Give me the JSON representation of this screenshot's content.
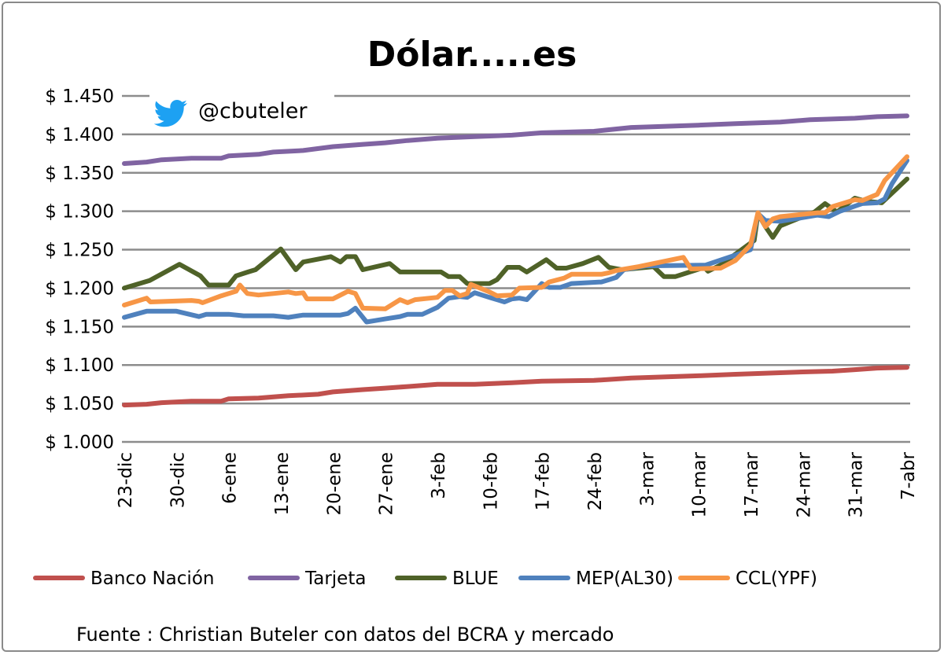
{
  "chart_data": {
    "type": "line",
    "title": "Dólar.....es",
    "handle": "@cbuteler",
    "source": "Fuente : Christian Buteler con datos del BCRA y mercado",
    "xlabel": "",
    "ylabel": "",
    "x_unit": "days since 23-dic",
    "x_ticks": [
      0,
      7,
      14,
      21,
      28,
      35,
      42,
      49,
      56,
      63,
      70,
      77,
      84,
      91,
      98,
      105
    ],
    "x_tick_labels": [
      "23-dic",
      "30-dic",
      "6-ene",
      "13-ene",
      "20-ene",
      "27-ene",
      "3-feb",
      "10-feb",
      "17-feb",
      "24-feb",
      "3-mar",
      "10-mar",
      "17-mar",
      "24-mar",
      "31-mar",
      "7-abr"
    ],
    "y_ticks": [
      1.0,
      1.05,
      1.1,
      1.15,
      1.2,
      1.25,
      1.3,
      1.35,
      1.4,
      1.45
    ],
    "y_tick_labels": [
      "$ 1.000",
      "$ 1.050",
      "$ 1.100",
      "$ 1.150",
      "$ 1.200",
      "$ 1.250",
      "$ 1.300",
      "$ 1.350",
      "$ 1.400",
      "$ 1.450"
    ],
    "ylim": [
      1.0,
      1.45
    ],
    "xlim": [
      0,
      105
    ],
    "grid": "horizontal",
    "legend": "bottom",
    "series": [
      {
        "name": "Banco Nación",
        "color": "#c0504d",
        "x": [
          0,
          3,
          5,
          9,
          13,
          14,
          18,
          22,
          26,
          28,
          32,
          35,
          38,
          42,
          47,
          52,
          56,
          63,
          68,
          77,
          82,
          91,
          95,
          98,
          101,
          105
        ],
        "y": [
          1.048,
          1.049,
          1.051,
          1.053,
          1.053,
          1.056,
          1.057,
          1.06,
          1.062,
          1.065,
          1.068,
          1.07,
          1.072,
          1.075,
          1.075,
          1.077,
          1.079,
          1.08,
          1.083,
          1.086,
          1.088,
          1.091,
          1.092,
          1.094,
          1.096,
          1.097
        ]
      },
      {
        "name": "Tarjeta",
        "color": "#8064a2",
        "x": [
          0,
          3,
          5,
          9,
          13,
          14,
          18,
          20,
          24,
          28,
          32,
          35,
          38,
          42,
          47,
          52,
          56,
          63,
          65,
          68,
          77,
          82,
          88,
          92,
          98,
          101,
          105
        ],
        "y": [
          1.362,
          1.364,
          1.367,
          1.369,
          1.369,
          1.372,
          1.374,
          1.377,
          1.379,
          1.384,
          1.387,
          1.389,
          1.392,
          1.395,
          1.397,
          1.399,
          1.402,
          1.404,
          1.406,
          1.409,
          1.412,
          1.414,
          1.416,
          1.419,
          1.421,
          1.423,
          1.424
        ]
      },
      {
        "name": "BLUE",
        "color": "#4f6228",
        "x": [
          0,
          3.4,
          7.4,
          10.2,
          11.3,
          14,
          15,
          16.6,
          17.6,
          21,
          23,
          24,
          27.7,
          29,
          29.8,
          31,
          32,
          35.6,
          37,
          42.5,
          43.5,
          45,
          46,
          49,
          50,
          51.4,
          53,
          54,
          56.6,
          58,
          59.3,
          61.5,
          63.6,
          65,
          66.7,
          71,
          72.4,
          73.9,
          77.8,
          78.3,
          80,
          84.5,
          85,
          86,
          87,
          88,
          92.6,
          94,
          95.6,
          98,
          99.5,
          101.6,
          105
        ],
        "y": [
          1.2,
          1.21,
          1.231,
          1.216,
          1.204,
          1.204,
          1.216,
          1.221,
          1.224,
          1.251,
          1.224,
          1.234,
          1.241,
          1.234,
          1.241,
          1.241,
          1.224,
          1.232,
          1.221,
          1.221,
          1.215,
          1.215,
          1.206,
          1.206,
          1.211,
          1.227,
          1.227,
          1.221,
          1.237,
          1.226,
          1.226,
          1.232,
          1.24,
          1.227,
          1.224,
          1.228,
          1.215,
          1.215,
          1.227,
          1.222,
          1.23,
          1.262,
          1.297,
          1.28,
          1.266,
          1.281,
          1.299,
          1.31,
          1.299,
          1.317,
          1.313,
          1.311,
          1.342
        ]
      },
      {
        "name": "MEP(AL30)",
        "color": "#4f81bd",
        "x": [
          0,
          3,
          7,
          10,
          11,
          14,
          16,
          20,
          22,
          24,
          29,
          30,
          31,
          32.5,
          35,
          37,
          38,
          40,
          42,
          43.5,
          45,
          46,
          47,
          49,
          51,
          52,
          53,
          54,
          56,
          57,
          58.5,
          60,
          64,
          65,
          66,
          67,
          70,
          78,
          82,
          84,
          85,
          86,
          88,
          93,
          94.5,
          96,
          99,
          101,
          102,
          103,
          105
        ],
        "y": [
          1.162,
          1.17,
          1.17,
          1.163,
          1.166,
          1.166,
          1.164,
          1.164,
          1.162,
          1.165,
          1.165,
          1.167,
          1.174,
          1.156,
          1.16,
          1.163,
          1.166,
          1.166,
          1.175,
          1.187,
          1.189,
          1.188,
          1.194,
          1.188,
          1.182,
          1.186,
          1.187,
          1.185,
          1.206,
          1.201,
          1.201,
          1.206,
          1.208,
          1.211,
          1.214,
          1.224,
          1.229,
          1.23,
          1.243,
          1.25,
          1.297,
          1.288,
          1.287,
          1.295,
          1.293,
          1.3,
          1.31,
          1.311,
          1.316,
          1.336,
          1.366
        ]
      },
      {
        "name": "CCL(YPF)",
        "color": "#f79646",
        "x": [
          0,
          3,
          3.5,
          9,
          10,
          10.5,
          13,
          15,
          15.5,
          16.5,
          18,
          20,
          22,
          23,
          24,
          24.5,
          28,
          30,
          31,
          32,
          35,
          37,
          38,
          39,
          42,
          43,
          44,
          45,
          46,
          46.5,
          49,
          50,
          52,
          53,
          56,
          57,
          59,
          60,
          64,
          65,
          66,
          69,
          75,
          76,
          80,
          82,
          84,
          85,
          86,
          87,
          88,
          93,
          94,
          95,
          98,
          99,
          101,
          102,
          105
        ],
        "y": [
          1.178,
          1.187,
          1.182,
          1.184,
          1.183,
          1.181,
          1.19,
          1.196,
          1.204,
          1.193,
          1.191,
          1.193,
          1.195,
          1.193,
          1.194,
          1.186,
          1.186,
          1.196,
          1.193,
          1.174,
          1.173,
          1.185,
          1.181,
          1.185,
          1.188,
          1.197,
          1.197,
          1.19,
          1.193,
          1.205,
          1.195,
          1.19,
          1.191,
          1.2,
          1.201,
          1.208,
          1.213,
          1.218,
          1.218,
          1.22,
          1.223,
          1.228,
          1.24,
          1.225,
          1.226,
          1.236,
          1.256,
          1.298,
          1.28,
          1.29,
          1.293,
          1.298,
          1.298,
          1.306,
          1.315,
          1.314,
          1.322,
          1.34,
          1.371
        ]
      }
    ]
  }
}
